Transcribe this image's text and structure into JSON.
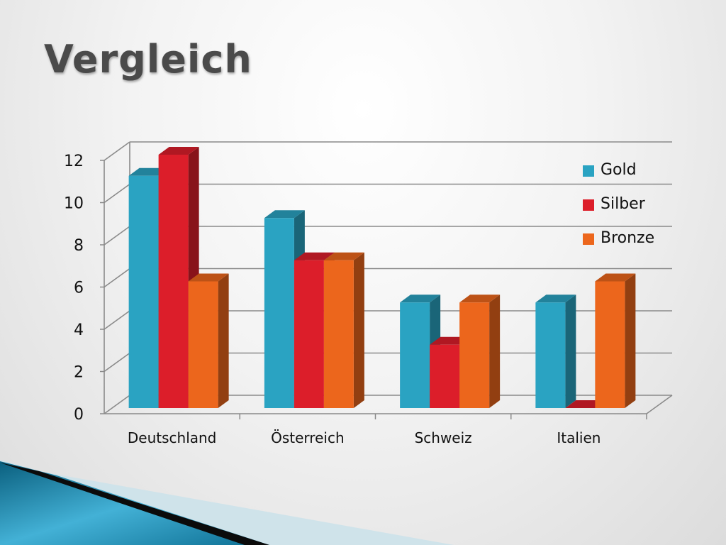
{
  "slide": {
    "title": "Vergleich"
  },
  "chart_data": {
    "type": "bar",
    "title": "",
    "xlabel": "",
    "ylabel": "",
    "categories": [
      "Deutschland",
      "Österreich",
      "Schweiz",
      "Italien"
    ],
    "series": [
      {
        "name": "Gold",
        "values": [
          11,
          9,
          5,
          5
        ],
        "color": "#2aa3c2"
      },
      {
        "name": "Silber",
        "values": [
          12,
          7,
          3,
          0
        ],
        "color": "#dc1e2a"
      },
      {
        "name": "Bronze",
        "values": [
          6,
          7,
          5,
          6
        ],
        "color": "#ec661c"
      }
    ],
    "yticks": [
      "0",
      "2",
      "4",
      "6",
      "8",
      "10",
      "12"
    ],
    "ylim": [
      0,
      12
    ],
    "grid": true,
    "legend": "top-right"
  }
}
